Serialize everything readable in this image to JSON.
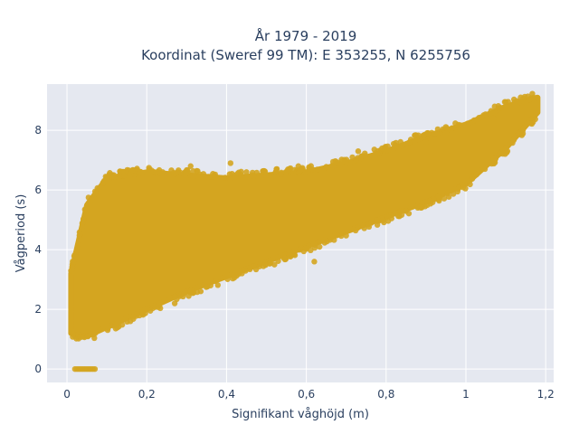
{
  "chart_data": {
    "type": "scatter",
    "title_line1": "År 1979 - 2019",
    "title_line2": "Koordinat (Sweref 99 TM): E 353255, N 6255756",
    "xlabel": "Signifikant våghöjd (m)",
    "ylabel": "Vågperiod (s)",
    "xlim": [
      -0.05,
      1.22
    ],
    "ylim": [
      -0.45,
      9.55
    ],
    "x_ticks": [
      0,
      0.2,
      0.4,
      0.6,
      0.8,
      1,
      1.2
    ],
    "x_tick_labels": [
      "0",
      "0,2",
      "0,4",
      "0,6",
      "0,8",
      "1",
      "1,2"
    ],
    "y_ticks": [
      0,
      2,
      4,
      6,
      8
    ],
    "y_tick_labels": [
      "0",
      "2",
      "4",
      "6",
      "8"
    ],
    "grid": true,
    "marker_color": "#d4a520",
    "plot_bgcolor": "#e5e8f0",
    "grid_color": "#ffffff",
    "text_color": "#2a3f5f",
    "zero_period_points": [
      {
        "x": 0.02,
        "y": 0
      },
      {
        "x": 0.025,
        "y": 0
      },
      {
        "x": 0.03,
        "y": 0
      },
      {
        "x": 0.035,
        "y": 0
      },
      {
        "x": 0.04,
        "y": 0
      },
      {
        "x": 0.045,
        "y": 0
      },
      {
        "x": 0.05,
        "y": 0
      },
      {
        "x": 0.055,
        "y": 0
      },
      {
        "x": 0.06,
        "y": 0
      },
      {
        "x": 0.065,
        "y": 0
      },
      {
        "x": 0.07,
        "y": 0
      }
    ],
    "scatter_cloud_envelope": {
      "x": [
        0.01,
        0.05,
        0.1,
        0.2,
        0.3,
        0.4,
        0.5,
        0.6,
        0.7,
        0.8,
        0.9,
        1.0,
        1.1,
        1.18
      ],
      "y_lower": [
        1.2,
        1.1,
        1.4,
        2.0,
        2.6,
        3.1,
        3.6,
        4.1,
        4.6,
        5.1,
        5.6,
        6.2,
        7.4,
        8.6
      ],
      "y_upper": [
        3.2,
        5.5,
        6.4,
        6.6,
        6.5,
        6.4,
        6.5,
        6.6,
        6.9,
        7.3,
        7.8,
        8.2,
        8.8,
        9.1
      ]
    },
    "outlier_points": [
      {
        "x": 0.14,
        "y": 6.6
      },
      {
        "x": 0.24,
        "y": 6.6
      },
      {
        "x": 0.31,
        "y": 6.8
      },
      {
        "x": 0.41,
        "y": 6.9
      },
      {
        "x": 0.45,
        "y": 6.6
      },
      {
        "x": 0.58,
        "y": 6.8
      },
      {
        "x": 0.68,
        "y": 6.9
      },
      {
        "x": 0.73,
        "y": 7.3
      },
      {
        "x": 0.79,
        "y": 7.4
      },
      {
        "x": 0.9,
        "y": 7.6
      },
      {
        "x": 0.95,
        "y": 7.9
      },
      {
        "x": 1.03,
        "y": 8.3
      },
      {
        "x": 1.07,
        "y": 8.4
      },
      {
        "x": 1.17,
        "y": 9.1
      },
      {
        "x": 0.27,
        "y": 2.2
      },
      {
        "x": 0.36,
        "y": 2.8
      },
      {
        "x": 0.52,
        "y": 3.5
      },
      {
        "x": 0.62,
        "y": 3.6
      },
      {
        "x": 0.85,
        "y": 5.3
      }
    ]
  }
}
